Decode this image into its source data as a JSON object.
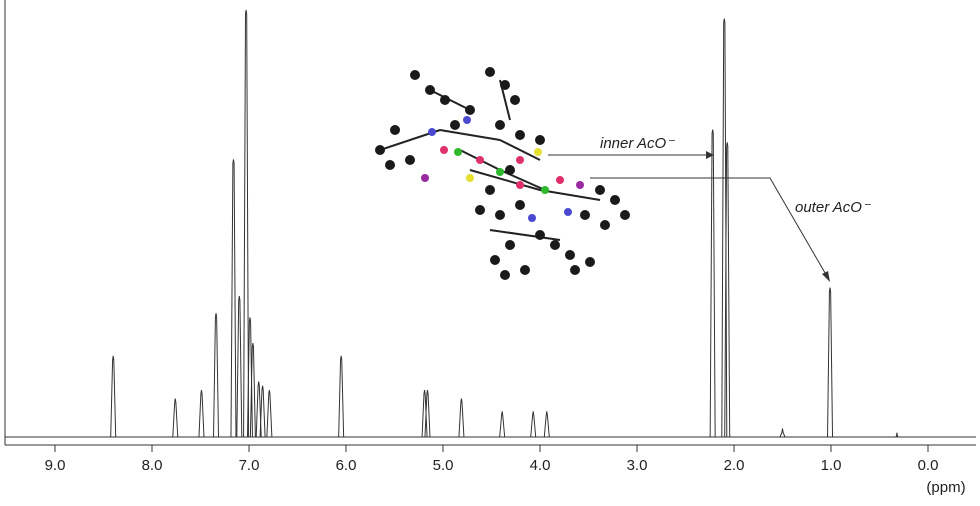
{
  "chart_data": {
    "type": "spectrum",
    "x_label": "(ppm)",
    "xlim": [
      9.5,
      -0.5
    ],
    "xticks": [
      {
        "value": 9,
        "label": "9.0"
      },
      {
        "value": 8,
        "label": "8.0"
      },
      {
        "value": 7,
        "label": "7.0"
      },
      {
        "value": 6,
        "label": "6.0"
      },
      {
        "value": 5,
        "label": "5.0"
      },
      {
        "value": 4,
        "label": "4.0"
      },
      {
        "value": 3,
        "label": "3.0"
      },
      {
        "value": 2,
        "label": "2.0"
      },
      {
        "value": 1,
        "label": "1.0"
      },
      {
        "value": 0,
        "label": "0.0"
      }
    ],
    "x": [
      8.4,
      7.76,
      7.49,
      7.34,
      7.16,
      7.1,
      7.03,
      6.99,
      6.96,
      6.9,
      6.86,
      6.79,
      6.05,
      5.19,
      5.16,
      4.81,
      4.39,
      4.07,
      3.93,
      2.22,
      2.1,
      2.07,
      1.5,
      1.01,
      0.32
    ],
    "values": [
      19,
      9,
      11,
      29,
      65,
      33,
      100,
      28,
      22,
      13,
      12,
      11,
      19,
      11,
      11,
      9,
      6,
      6,
      6,
      72,
      98,
      69,
      2,
      35,
      1
    ],
    "color": "#333333",
    "annotations": [
      {
        "text": "inner AcO⁻"
      },
      {
        "text": "outer AcO⁻"
      }
    ]
  }
}
